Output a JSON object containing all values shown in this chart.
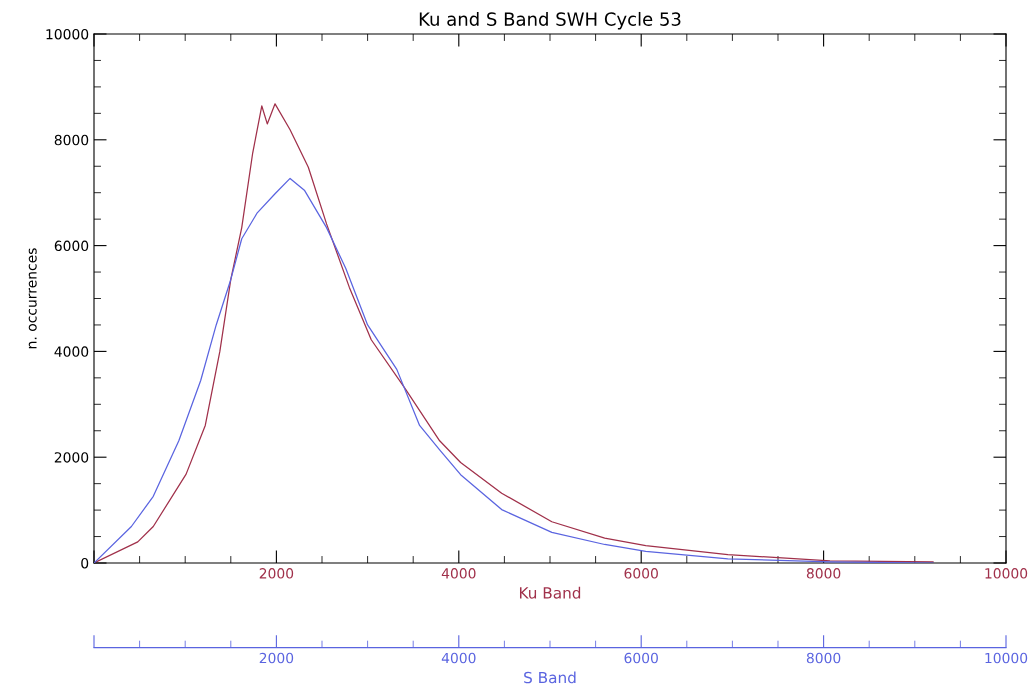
{
  "chart_data": {
    "type": "line",
    "title": "Ku and S Band SWH Cycle 53",
    "xlabel": "Ku Band",
    "ylabel": "n. occurrences",
    "x2label": "S Band",
    "xlim": [
      0,
      10000
    ],
    "xticks": [
      {
        "value": 0,
        "label": null
      },
      2000,
      4000,
      6000,
      8000,
      10000
    ],
    "x2lim": [
      0,
      10000
    ],
    "x2ticks": [
      {
        "value": 0,
        "label": null
      },
      2000,
      4000,
      6000,
      8000,
      10000
    ],
    "ylim": [
      0,
      10000
    ],
    "yticks": [
      0,
      2000,
      4000,
      6000,
      8000,
      10000
    ],
    "grid": false,
    "legend": false,
    "line_style": "solid",
    "marker": "none",
    "series": [
      {
        "color": "#a0304a",
        "x": [
          0,
          480,
          650,
          1010,
          1220,
          1380,
          1500,
          1620,
          1740,
          1840,
          1900,
          1985,
          2150,
          2350,
          2550,
          2800,
          3040,
          3410,
          3790,
          4020,
          4470,
          5020,
          5600,
          6050,
          6950,
          8070,
          9200
        ],
        "values": [
          0,
          400,
          690,
          1680,
          2600,
          4000,
          5360,
          6340,
          7750,
          8640,
          8300,
          8680,
          8190,
          7480,
          6410,
          5210,
          4220,
          3300,
          2310,
          1900,
          1320,
          780,
          470,
          330,
          160,
          40,
          20
        ]
      },
      {
        "color": "#5a64e0",
        "axis": "x2",
        "x": [
          0,
          410,
          650,
          930,
          1170,
          1340,
          1500,
          1620,
          1790,
          1985,
          2150,
          2310,
          2550,
          2760,
          3000,
          3320,
          3570,
          3790,
          4020,
          4470,
          5020,
          5600,
          6050,
          6950,
          8070,
          9200
        ],
        "values": [
          0,
          690,
          1260,
          2310,
          3450,
          4500,
          5360,
          6130,
          6620,
          6980,
          7270,
          7040,
          6340,
          5570,
          4500,
          3660,
          2600,
          2140,
          1670,
          1010,
          580,
          350,
          220,
          80,
          20,
          0
        ]
      }
    ]
  }
}
